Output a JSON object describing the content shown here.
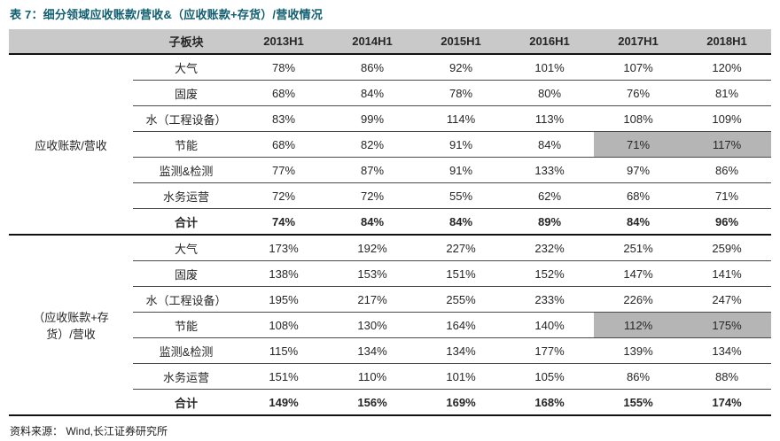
{
  "title": "表 7：细分领域应收账款/营收&（应收账款+存货）/营收情况",
  "header": {
    "sub_column": "子板块",
    "periods": [
      "2013H1",
      "2014H1",
      "2015H1",
      "2016H1",
      "2017H1",
      "2018H1"
    ]
  },
  "groups": [
    {
      "label": "应收账款/营收",
      "rows": [
        {
          "name": "大气",
          "values": [
            "78%",
            "86%",
            "92%",
            "101%",
            "107%",
            "120%"
          ]
        },
        {
          "name": "固废",
          "values": [
            "68%",
            "84%",
            "78%",
            "80%",
            "76%",
            "81%"
          ]
        },
        {
          "name": "水（工程设备）",
          "values": [
            "83%",
            "99%",
            "114%",
            "113%",
            "108%",
            "109%"
          ]
        },
        {
          "name": "节能",
          "values": [
            "68%",
            "82%",
            "91%",
            "84%",
            "71%",
            "117%"
          ],
          "highlight": [
            4,
            5
          ]
        },
        {
          "name": "监测&检测",
          "values": [
            "77%",
            "87%",
            "91%",
            "133%",
            "97%",
            "86%"
          ]
        },
        {
          "name": "水务运营",
          "values": [
            "72%",
            "72%",
            "55%",
            "62%",
            "68%",
            "71%"
          ]
        },
        {
          "name": "合计",
          "values": [
            "74%",
            "84%",
            "84%",
            "89%",
            "84%",
            "96%"
          ],
          "bold": true
        }
      ]
    },
    {
      "label": "（应收账款+存货）/营收",
      "rows": [
        {
          "name": "大气",
          "values": [
            "173%",
            "192%",
            "227%",
            "232%",
            "251%",
            "259%"
          ]
        },
        {
          "name": "固废",
          "values": [
            "138%",
            "153%",
            "151%",
            "152%",
            "147%",
            "141%"
          ]
        },
        {
          "name": "水（工程设备）",
          "values": [
            "195%",
            "217%",
            "255%",
            "233%",
            "226%",
            "247%"
          ]
        },
        {
          "name": "节能",
          "values": [
            "108%",
            "130%",
            "164%",
            "140%",
            "112%",
            "175%"
          ],
          "highlight": [
            4,
            5
          ]
        },
        {
          "name": "监测&检测",
          "values": [
            "115%",
            "134%",
            "134%",
            "177%",
            "139%",
            "134%"
          ]
        },
        {
          "name": "水务运营",
          "values": [
            "151%",
            "110%",
            "101%",
            "105%",
            "86%",
            "88%"
          ]
        },
        {
          "name": "合计",
          "values": [
            "149%",
            "156%",
            "169%",
            "168%",
            "155%",
            "174%"
          ],
          "bold": true
        }
      ]
    }
  ],
  "footer": {
    "source": "资料来源： Wind,长江证券研究所"
  },
  "colors": {
    "title_color": "#115e70",
    "header_bg": "#c9c9c9",
    "highlight_bg": "#b5b5b5",
    "border_dark": "#111111",
    "row_line": "#4a4a4a"
  }
}
